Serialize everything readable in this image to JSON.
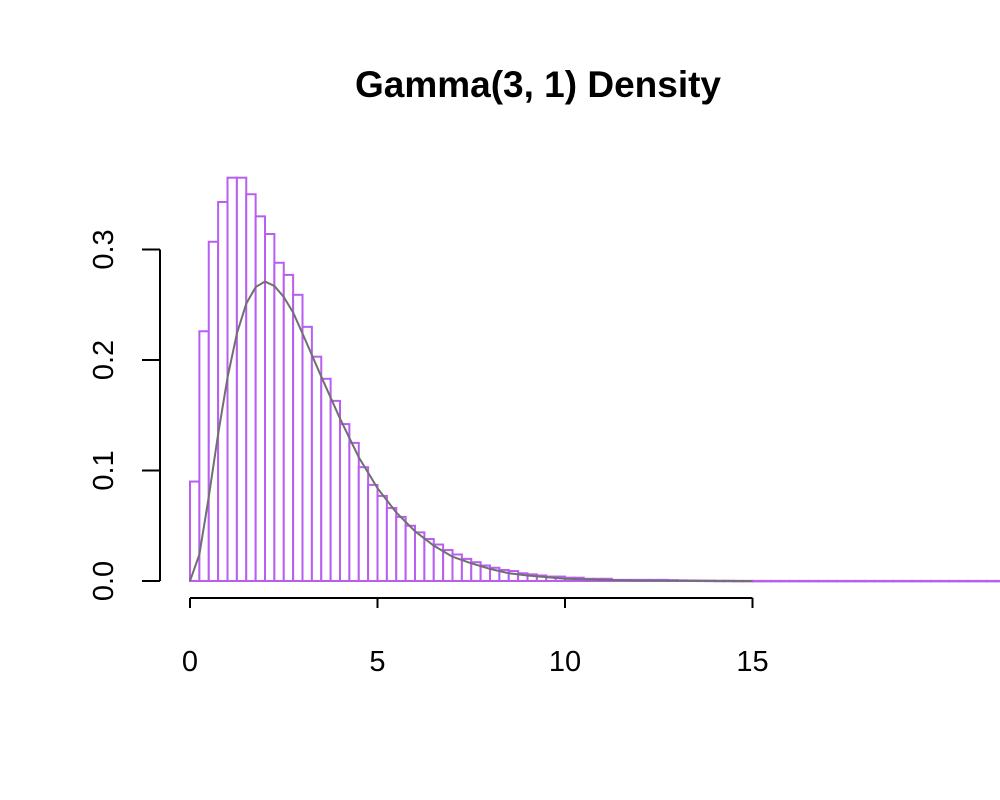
{
  "chart_data": {
    "type": "bar",
    "title": "Gamma(3, 1) Density",
    "xlabel": "",
    "ylabel": "",
    "xlim": [
      0,
      18.7
    ],
    "ylim": [
      0,
      0.365
    ],
    "x_ticks": [
      0,
      5,
      10,
      15
    ],
    "x_tick_labels": [
      "0",
      "5",
      "10",
      "15"
    ],
    "y_ticks": [
      0,
      0.1,
      0.2,
      0.3
    ],
    "y_tick_labels": [
      "0.0",
      "0.1",
      "0.2",
      "0.3"
    ],
    "grid": false,
    "legend": "none",
    "histogram": {
      "bin_width": 0.25,
      "bin_start": 0,
      "color": "#b85ef0",
      "density": [
        0.09,
        0.226,
        0.307,
        0.343,
        0.365,
        0.365,
        0.35,
        0.33,
        0.314,
        0.288,
        0.277,
        0.259,
        0.23,
        0.203,
        0.183,
        0.163,
        0.142,
        0.125,
        0.103,
        0.087,
        0.077,
        0.066,
        0.058,
        0.05,
        0.044,
        0.038,
        0.033,
        0.028,
        0.024,
        0.02,
        0.017,
        0.014,
        0.012,
        0.01,
        0.009,
        0.007,
        0.006,
        0.005,
        0.004,
        0.004,
        0.003,
        0.003,
        0.002,
        0.002,
        0.002,
        0.001,
        0.001,
        0.001,
        0.001,
        0.001,
        0.001,
        0.0008,
        0.0006,
        0.0005,
        0.0004,
        0.0003,
        0.0002,
        0.0002,
        0.0001,
        0.0001,
        0.0001,
        0.0001,
        0.0001,
        0.0001,
        0.0001,
        0.0001,
        0.0001,
        0.0001,
        0.0001,
        0.0001,
        0.0001,
        0.0001,
        0.0001,
        0.0001,
        0.0001,
        0.0001,
        0.0001,
        0.0001,
        0.0001,
        0.0001,
        0.0001,
        0.0001,
        0.0001,
        0.0001,
        0.0001,
        0.0001,
        0.0001,
        0.0001,
        0.0001,
        0.0001,
        0.0001,
        0.0001,
        0.0001,
        0.0001,
        0.0001,
        0.0001,
        0.0001,
        0.0001,
        0.0001,
        0.0001,
        0.0001,
        0.0001,
        0.0001,
        0.0001,
        0.0001,
        0.0001,
        0.0001,
        0.0001,
        0.0001,
        0.0001,
        0.0001,
        0.0001,
        0.0001,
        0.0001,
        0.0001,
        0.0001,
        0.0001,
        0.0001,
        0.0001,
        0.0001,
        0.0001,
        0.0001,
        0.0001,
        0.0001,
        0.0001,
        0.0001,
        0.0001,
        0.0001,
        0.0001,
        0.0001,
        0.0001,
        0.0001,
        0.0001,
        0.0001,
        0.0001,
        0.0001,
        0.0001,
        0.0001,
        0.0001,
        0.0001,
        0.0001,
        0.0001,
        0.0001,
        0.0001,
        0.0001,
        0.0001,
        0.0001,
        0.0001,
        0.0001,
        0.0001
      ]
    },
    "density_curve": {
      "color": "#707070",
      "x": [
        0,
        0.25,
        0.5,
        0.75,
        1,
        1.25,
        1.5,
        1.75,
        2,
        2.25,
        2.5,
        2.75,
        3,
        3.5,
        4,
        4.5,
        5,
        5.5,
        6,
        6.5,
        7,
        7.5,
        8,
        8.5,
        9,
        10,
        11,
        12,
        13,
        14,
        15
      ],
      "y": [
        0,
        0.024,
        0.076,
        0.133,
        0.184,
        0.224,
        0.251,
        0.266,
        0.271,
        0.267,
        0.257,
        0.243,
        0.224,
        0.185,
        0.147,
        0.112,
        0.084,
        0.062,
        0.045,
        0.032,
        0.022,
        0.016,
        0.011,
        0.007,
        0.005,
        0.002,
        0.001,
        0.0004,
        0.0002,
        0.0001,
        0.0
      ]
    }
  }
}
